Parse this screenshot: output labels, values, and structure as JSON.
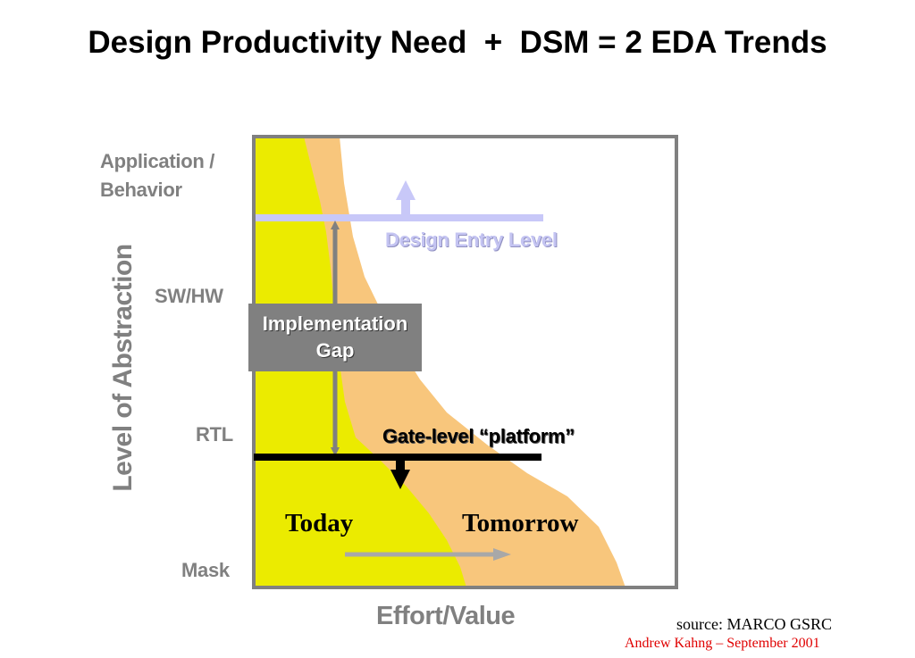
{
  "title": "Design Productivity Need  +  DSM = 2 EDA Trends",
  "levels": {
    "application": "Application /",
    "behavior": "Behavior",
    "swhw": "SW/HW",
    "rtl": "RTL",
    "mask": "Mask"
  },
  "axes": {
    "y": "Level of Abstraction",
    "x": "Effort/Value"
  },
  "labels": {
    "design_entry": "Design Entry Level",
    "gap_line1": "Implementation",
    "gap_line2": "Gap",
    "gate_level": "Gate-level “platform”",
    "today": "Today",
    "tomorrow": "Tomorrow"
  },
  "footer": {
    "source": "source:  MARCO GSRC",
    "author": "Andrew Kahng – September 2001"
  },
  "colors": {
    "today_region": "#ebeb00",
    "tomorrow_region": "#f8c67c",
    "design_entry": "#c8c8f8",
    "gap_box": "#808080",
    "axis_text": "#808080",
    "author": "#e00000"
  }
}
